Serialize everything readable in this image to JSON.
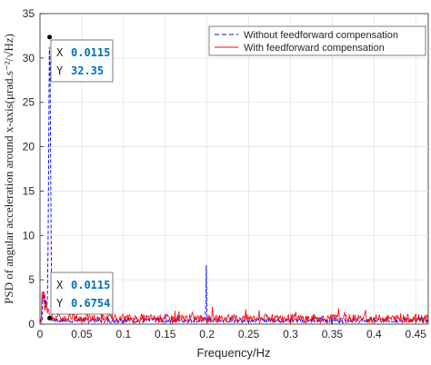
{
  "chart_data": {
    "type": "line",
    "xlabel": "Frequency/Hz",
    "ylabel": "PSD of angular acceleration around x-axis(μrad.s⁻²/√Hz)",
    "xlim": [
      0,
      0.465
    ],
    "ylim": [
      0,
      35
    ],
    "xticks": [
      "0",
      "0.05",
      "0.1",
      "0.15",
      "0.2",
      "0.25",
      "0.3",
      "0.35",
      "0.4",
      "0.45"
    ],
    "yticks": [
      "0",
      "5",
      "10",
      "15",
      "20",
      "25",
      "30",
      "35"
    ],
    "grid": true,
    "legend_position": "top-right",
    "series": [
      {
        "name": "Without feedforward compensation",
        "color": "#0000ff",
        "style": "dashed",
        "peaks": [
          {
            "x": 0.0115,
            "y": 32.35
          },
          {
            "x": 0.199,
            "y": 7.8
          }
        ],
        "baseline": 0.5
      },
      {
        "name": "With feedforward compensation",
        "color": "#ff0000",
        "style": "solid",
        "peaks": [
          {
            "x": 0.0115,
            "y": 0.6754
          }
        ],
        "baseline": 0.7
      }
    ],
    "datatips": [
      {
        "x_label": "X",
        "x_value": "0.0115",
        "y_label": "Y",
        "y_value": "32.35",
        "x": 0.0115,
        "y": 32.35
      },
      {
        "x_label": "X",
        "x_value": "0.0115",
        "y_label": "Y",
        "y_value": "0.6754",
        "x": 0.0115,
        "y": 0.6754
      }
    ]
  }
}
